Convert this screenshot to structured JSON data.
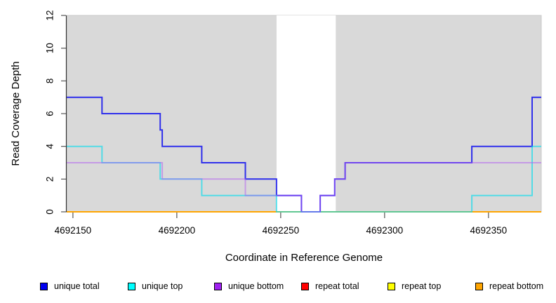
{
  "chart_data": {
    "type": "line",
    "subtype": "step-post-coverage-plot",
    "title": "",
    "xlabel": "Coordinate in Reference Genome",
    "ylabel": "Read Coverage Depth",
    "xlim": [
      4692147,
      4692375.4
    ],
    "ylim": [
      0,
      12
    ],
    "x_ticks": [
      4692150,
      4692200,
      4692250,
      4692300,
      4692350
    ],
    "y_ticks": [
      0,
      2,
      4,
      6,
      8,
      10,
      12
    ],
    "grid": "off",
    "legend_position": "bottom",
    "colors": {
      "panel_background": "#d9d9d9",
      "panel_edge": "#c9c9c9",
      "page_background": "#ffffff",
      "axis_line": "#333333",
      "tick_mark": "#555555",
      "text": "#000000"
    },
    "highlight_region": {
      "x_start": 4692248,
      "x_end": 4692276.5,
      "color": "#ffffff",
      "meaning": "zero-unique-coverage (deleted) region shown as white band"
    },
    "series": [
      {
        "name": "unique total",
        "legend_color": "#0000f0",
        "line_color": "#1212ee",
        "opacity": 0.85,
        "points": [
          [
            4692147,
            7
          ],
          [
            4692164,
            6
          ],
          [
            4692192,
            5
          ],
          [
            4692193,
            4
          ],
          [
            4692212,
            3
          ],
          [
            4692233,
            2
          ],
          [
            4692248,
            1
          ],
          [
            4692260,
            0
          ],
          [
            4692269,
            1
          ],
          [
            4692276,
            2
          ],
          [
            4692281,
            3
          ],
          [
            4692342,
            4
          ],
          [
            4692371,
            7
          ]
        ]
      },
      {
        "name": "unique top",
        "legend_color": "#00ffff",
        "line_color": "#00dcee",
        "opacity": 0.62,
        "points": [
          [
            4692147,
            4
          ],
          [
            4692164,
            3
          ],
          [
            4692192,
            2
          ],
          [
            4692212,
            1
          ],
          [
            4692248,
            0
          ],
          [
            4692342,
            1
          ],
          [
            4692371,
            4
          ]
        ]
      },
      {
        "name": "unique bottom",
        "legend_color": "#a020f0",
        "line_color": "#b25cf2",
        "opacity": 0.5,
        "points": [
          [
            4692147,
            3
          ],
          [
            4692193,
            2
          ],
          [
            4692233,
            1
          ],
          [
            4692260,
            0
          ],
          [
            4692269,
            1
          ],
          [
            4692276,
            2
          ],
          [
            4692281,
            3
          ]
        ]
      },
      {
        "name": "repeat total",
        "legend_color": "#ff0000",
        "line_color": "#dd0000",
        "opacity": 1,
        "points": [
          [
            4692147,
            0
          ]
        ]
      },
      {
        "name": "repeat top",
        "legend_color": "#ffff00",
        "line_color": "#ffff00",
        "opacity": 1,
        "points": [
          [
            4692147,
            0
          ]
        ]
      },
      {
        "name": "repeat bottom",
        "legend_color": "#ffa500",
        "line_color": "#ffa500",
        "opacity": 1,
        "points": [
          [
            4692147,
            0
          ]
        ]
      }
    ],
    "draw_order": [
      "repeat total",
      "repeat top",
      "repeat bottom",
      "unique total",
      "unique top",
      "unique bottom"
    ]
  },
  "legend": {
    "entries": [
      {
        "label": "unique total",
        "color": "#0000f0"
      },
      {
        "label": "unique top",
        "color": "#00ffff"
      },
      {
        "label": "unique bottom",
        "color": "#a020f0"
      },
      {
        "label": "repeat total",
        "color": "#ff0000"
      },
      {
        "label": "repeat top",
        "color": "#ffff00"
      },
      {
        "label": "repeat bottom",
        "color": "#ffa500"
      }
    ]
  }
}
